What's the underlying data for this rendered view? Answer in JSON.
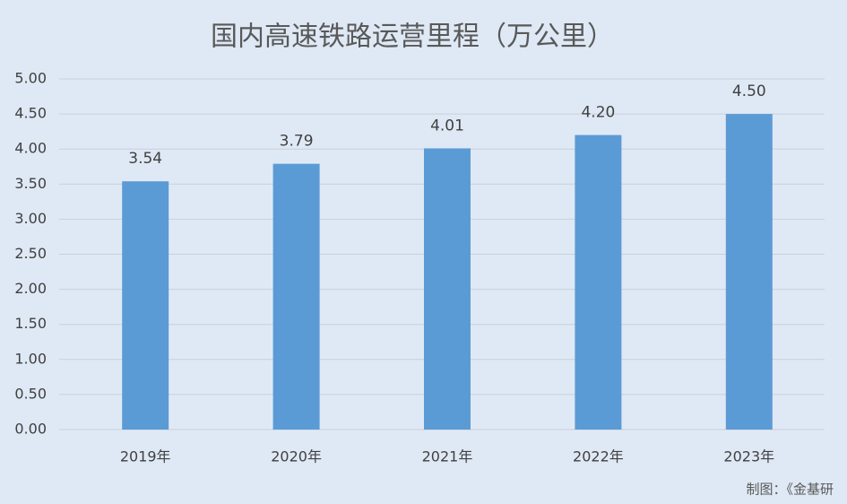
{
  "chart_data": {
    "type": "bar",
    "title": "国内高速铁路运营里程（万公里）",
    "categories": [
      "2019年",
      "2020年",
      "2021年",
      "2022年",
      "2023年"
    ],
    "values": [
      3.54,
      3.79,
      4.01,
      4.2,
      4.5
    ],
    "value_labels": [
      "3.54",
      "3.79",
      "4.01",
      "4.20",
      "4.50"
    ],
    "color": "#5b9bd5",
    "ylim": [
      0,
      5
    ],
    "yticks": [
      {
        "value": 0,
        "label": "0.00"
      },
      {
        "value": 0.5,
        "label": "0.50"
      },
      {
        "value": 1,
        "label": "1.00"
      },
      {
        "value": 1.5,
        "label": "1.50"
      },
      {
        "value": 2,
        "label": "2.00"
      },
      {
        "value": 2.5,
        "label": "2.50"
      },
      {
        "value": 3,
        "label": "3.00"
      },
      {
        "value": 3.5,
        "label": "3.50"
      },
      {
        "value": 4,
        "label": "4.00"
      },
      {
        "value": 4.5,
        "label": "4.50"
      },
      {
        "value": 5,
        "label": "5.00"
      }
    ],
    "grid": true,
    "source": "制图：《金基研"
  }
}
